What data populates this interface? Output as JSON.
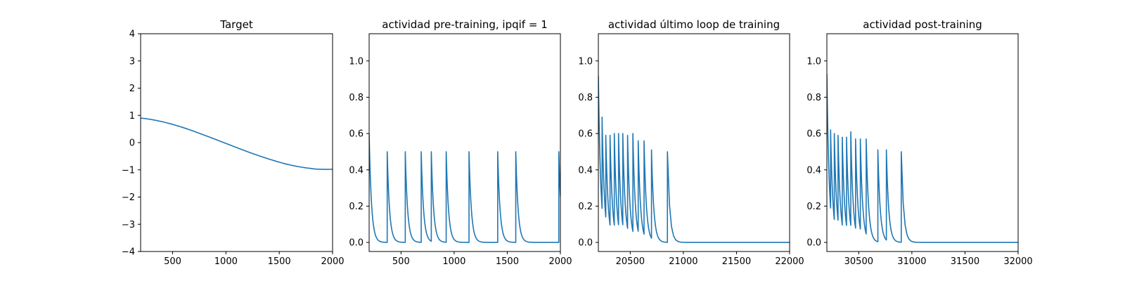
{
  "chart_data": [
    {
      "type": "line",
      "title": "Target",
      "xlabel": "",
      "ylabel": "",
      "xlim": [
        200,
        2000
      ],
      "ylim": [
        -4,
        4
      ],
      "xticks": [
        500,
        1000,
        1500,
        2000
      ],
      "yticks": [
        -4,
        -3,
        -2,
        -1,
        0,
        1,
        2,
        3,
        4
      ],
      "ytick_labels": [
        "−4",
        "−3",
        "−2",
        "−1",
        "0",
        "1",
        "2",
        "3",
        "4"
      ],
      "grid": false,
      "color": "#1f77b4",
      "x": [
        200,
        400,
        600,
        800,
        1000,
        1200,
        1400,
        1600,
        1800,
        1900,
        2000
      ],
      "y": [
        0.9,
        0.77,
        0.55,
        0.27,
        -0.03,
        -0.33,
        -0.6,
        -0.82,
        -0.95,
        -0.98,
        -0.98
      ]
    },
    {
      "type": "line",
      "title": "actividad pre-training, ipqif = 1",
      "xlabel": "",
      "ylabel": "",
      "xlim": [
        200,
        2000
      ],
      "ylim": [
        -0.05,
        1.15
      ],
      "xticks": [
        500,
        1000,
        1500,
        2000
      ],
      "yticks": [
        0.0,
        0.2,
        0.4,
        0.6,
        0.8,
        1.0
      ],
      "ytick_labels": [
        "0.0",
        "0.2",
        "0.4",
        "0.6",
        "0.8",
        "1.0"
      ],
      "grid": false,
      "color": "#1f77b4",
      "spikes": [
        {
          "t": 200,
          "peak": 0.6
        },
        {
          "t": 370,
          "peak": 0.5
        },
        {
          "t": 540,
          "peak": 0.5
        },
        {
          "t": 690,
          "peak": 0.5
        },
        {
          "t": 785,
          "peak": 0.5
        },
        {
          "t": 925,
          "peak": 0.5
        },
        {
          "t": 1140,
          "peak": 0.5
        },
        {
          "t": 1410,
          "peak": 0.5
        },
        {
          "t": 1580,
          "peak": 0.5
        },
        {
          "t": 1985,
          "peak": 0.5
        }
      ]
    },
    {
      "type": "line",
      "title": "actividad último loop de training",
      "xlabel": "",
      "ylabel": "",
      "xlim": [
        20200,
        22000
      ],
      "ylim": [
        -0.05,
        1.15
      ],
      "xticks": [
        20500,
        21000,
        21500,
        22000
      ],
      "yticks": [
        0.0,
        0.2,
        0.4,
        0.6,
        0.8,
        1.0
      ],
      "ytick_labels": [
        "0.0",
        "0.2",
        "0.4",
        "0.6",
        "0.8",
        "1.0"
      ],
      "grid": false,
      "color": "#1f77b4",
      "spikes": [
        {
          "t": 20200,
          "peak": 0.92
        },
        {
          "t": 20235,
          "peak": 0.69
        },
        {
          "t": 20270,
          "peak": 0.59
        },
        {
          "t": 20310,
          "peak": 0.59
        },
        {
          "t": 20350,
          "peak": 0.6
        },
        {
          "t": 20390,
          "peak": 0.6
        },
        {
          "t": 20430,
          "peak": 0.6
        },
        {
          "t": 20475,
          "peak": 0.59
        },
        {
          "t": 20525,
          "peak": 0.6
        },
        {
          "t": 20575,
          "peak": 0.56
        },
        {
          "t": 20630,
          "peak": 0.56
        },
        {
          "t": 20700,
          "peak": 0.51
        },
        {
          "t": 20850,
          "peak": 0.5
        }
      ]
    },
    {
      "type": "line",
      "title": "actividad post-training",
      "xlabel": "",
      "ylabel": "",
      "xlim": [
        30200,
        32000
      ],
      "ylim": [
        -0.05,
        1.15
      ],
      "xticks": [
        30500,
        31000,
        31500,
        32000
      ],
      "yticks": [
        0.0,
        0.2,
        0.4,
        0.6,
        0.8,
        1.0
      ],
      "ytick_labels": [
        "0.0",
        "0.2",
        "0.4",
        "0.6",
        "0.8",
        "1.0"
      ],
      "grid": false,
      "color": "#1f77b4",
      "spikes": [
        {
          "t": 30200,
          "peak": 0.93
        },
        {
          "t": 30235,
          "peak": 0.62
        },
        {
          "t": 30270,
          "peak": 0.6
        },
        {
          "t": 30305,
          "peak": 0.59
        },
        {
          "t": 30345,
          "peak": 0.58
        },
        {
          "t": 30385,
          "peak": 0.58
        },
        {
          "t": 30425,
          "peak": 0.61
        },
        {
          "t": 30470,
          "peak": 0.57
        },
        {
          "t": 30515,
          "peak": 0.57
        },
        {
          "t": 30570,
          "peak": 0.57
        },
        {
          "t": 30680,
          "peak": 0.51
        },
        {
          "t": 30760,
          "peak": 0.51
        },
        {
          "t": 30900,
          "peak": 0.5
        }
      ]
    }
  ]
}
